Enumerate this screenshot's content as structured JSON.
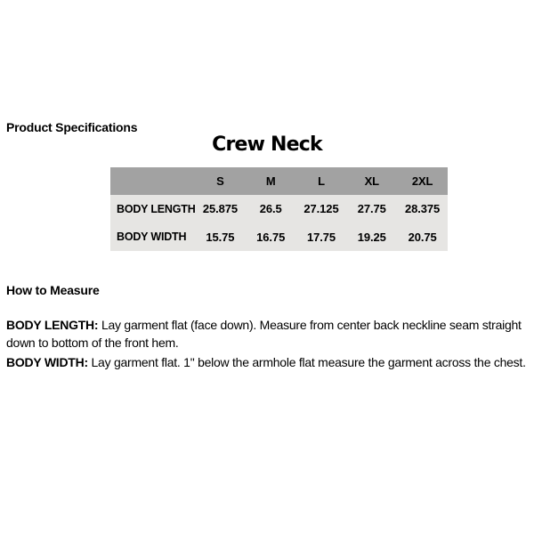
{
  "page": {
    "section_title": "Product Specifications",
    "product_title": "Crew Neck",
    "measure_title": "How to Measure"
  },
  "size_table": {
    "sizes": [
      "S",
      "M",
      "L",
      "XL",
      "2XL"
    ],
    "rows": [
      {
        "label": "BODY LENGTH",
        "values": [
          "25.875",
          "26.5",
          "27.125",
          "27.75",
          "28.375"
        ]
      },
      {
        "label": "BODY WIDTH",
        "values": [
          "15.75",
          "16.75",
          "17.75",
          "19.25",
          "20.75"
        ]
      }
    ]
  },
  "instructions": [
    {
      "term": "BODY LENGTH:",
      "text": "Lay garment flat (face down). Measure from center back neckline seam straight down to bottom of the front hem."
    },
    {
      "term": "BODY WIDTH:",
      "text": "Lay garment flat. 1\" below the armhole flat measure the garment across the chest."
    }
  ],
  "colors": {
    "header_bg": "#a2a2a2",
    "body_bg": "#e6e5e3",
    "text": "#000000",
    "page_bg": "#ffffff"
  }
}
